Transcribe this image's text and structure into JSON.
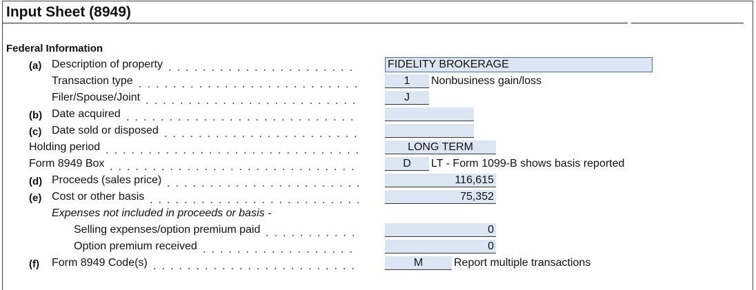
{
  "header": {
    "title": "Input Sheet (8949)"
  },
  "section": {
    "title": "Federal Information"
  },
  "rows": [
    {
      "prefix": "(a)",
      "label": "Description of property",
      "value": "FIDELITY BROKERAGE"
    },
    {
      "label": "Transaction type",
      "value": "1",
      "note": "Nonbusiness gain/loss"
    },
    {
      "label": "Filer/Spouse/Joint",
      "value": "J"
    },
    {
      "prefix": "(b)",
      "label": "Date acquired"
    },
    {
      "prefix": "(c)",
      "label": "Date sold or disposed"
    },
    {
      "label": "Holding period",
      "value": "LONG TERM"
    },
    {
      "label": "Form 8949 Box",
      "value": "D",
      "note": "LT - Form 1099-B shows basis reported"
    },
    {
      "prefix": "(d)",
      "label": "Proceeds (sales price)",
      "value": "116,615"
    },
    {
      "prefix": "(e)",
      "label": "Cost or other basis",
      "value": "75,352"
    },
    {
      "label": "Expenses not included in proceeds or basis -"
    },
    {
      "label": "Selling expenses/option premium paid",
      "value": "0"
    },
    {
      "label": "Option premium received",
      "value": "0"
    },
    {
      "prefix": "(f)",
      "label": "Form 8949 Code(s)",
      "value": "M",
      "note": "Report multiple transactions"
    }
  ]
}
